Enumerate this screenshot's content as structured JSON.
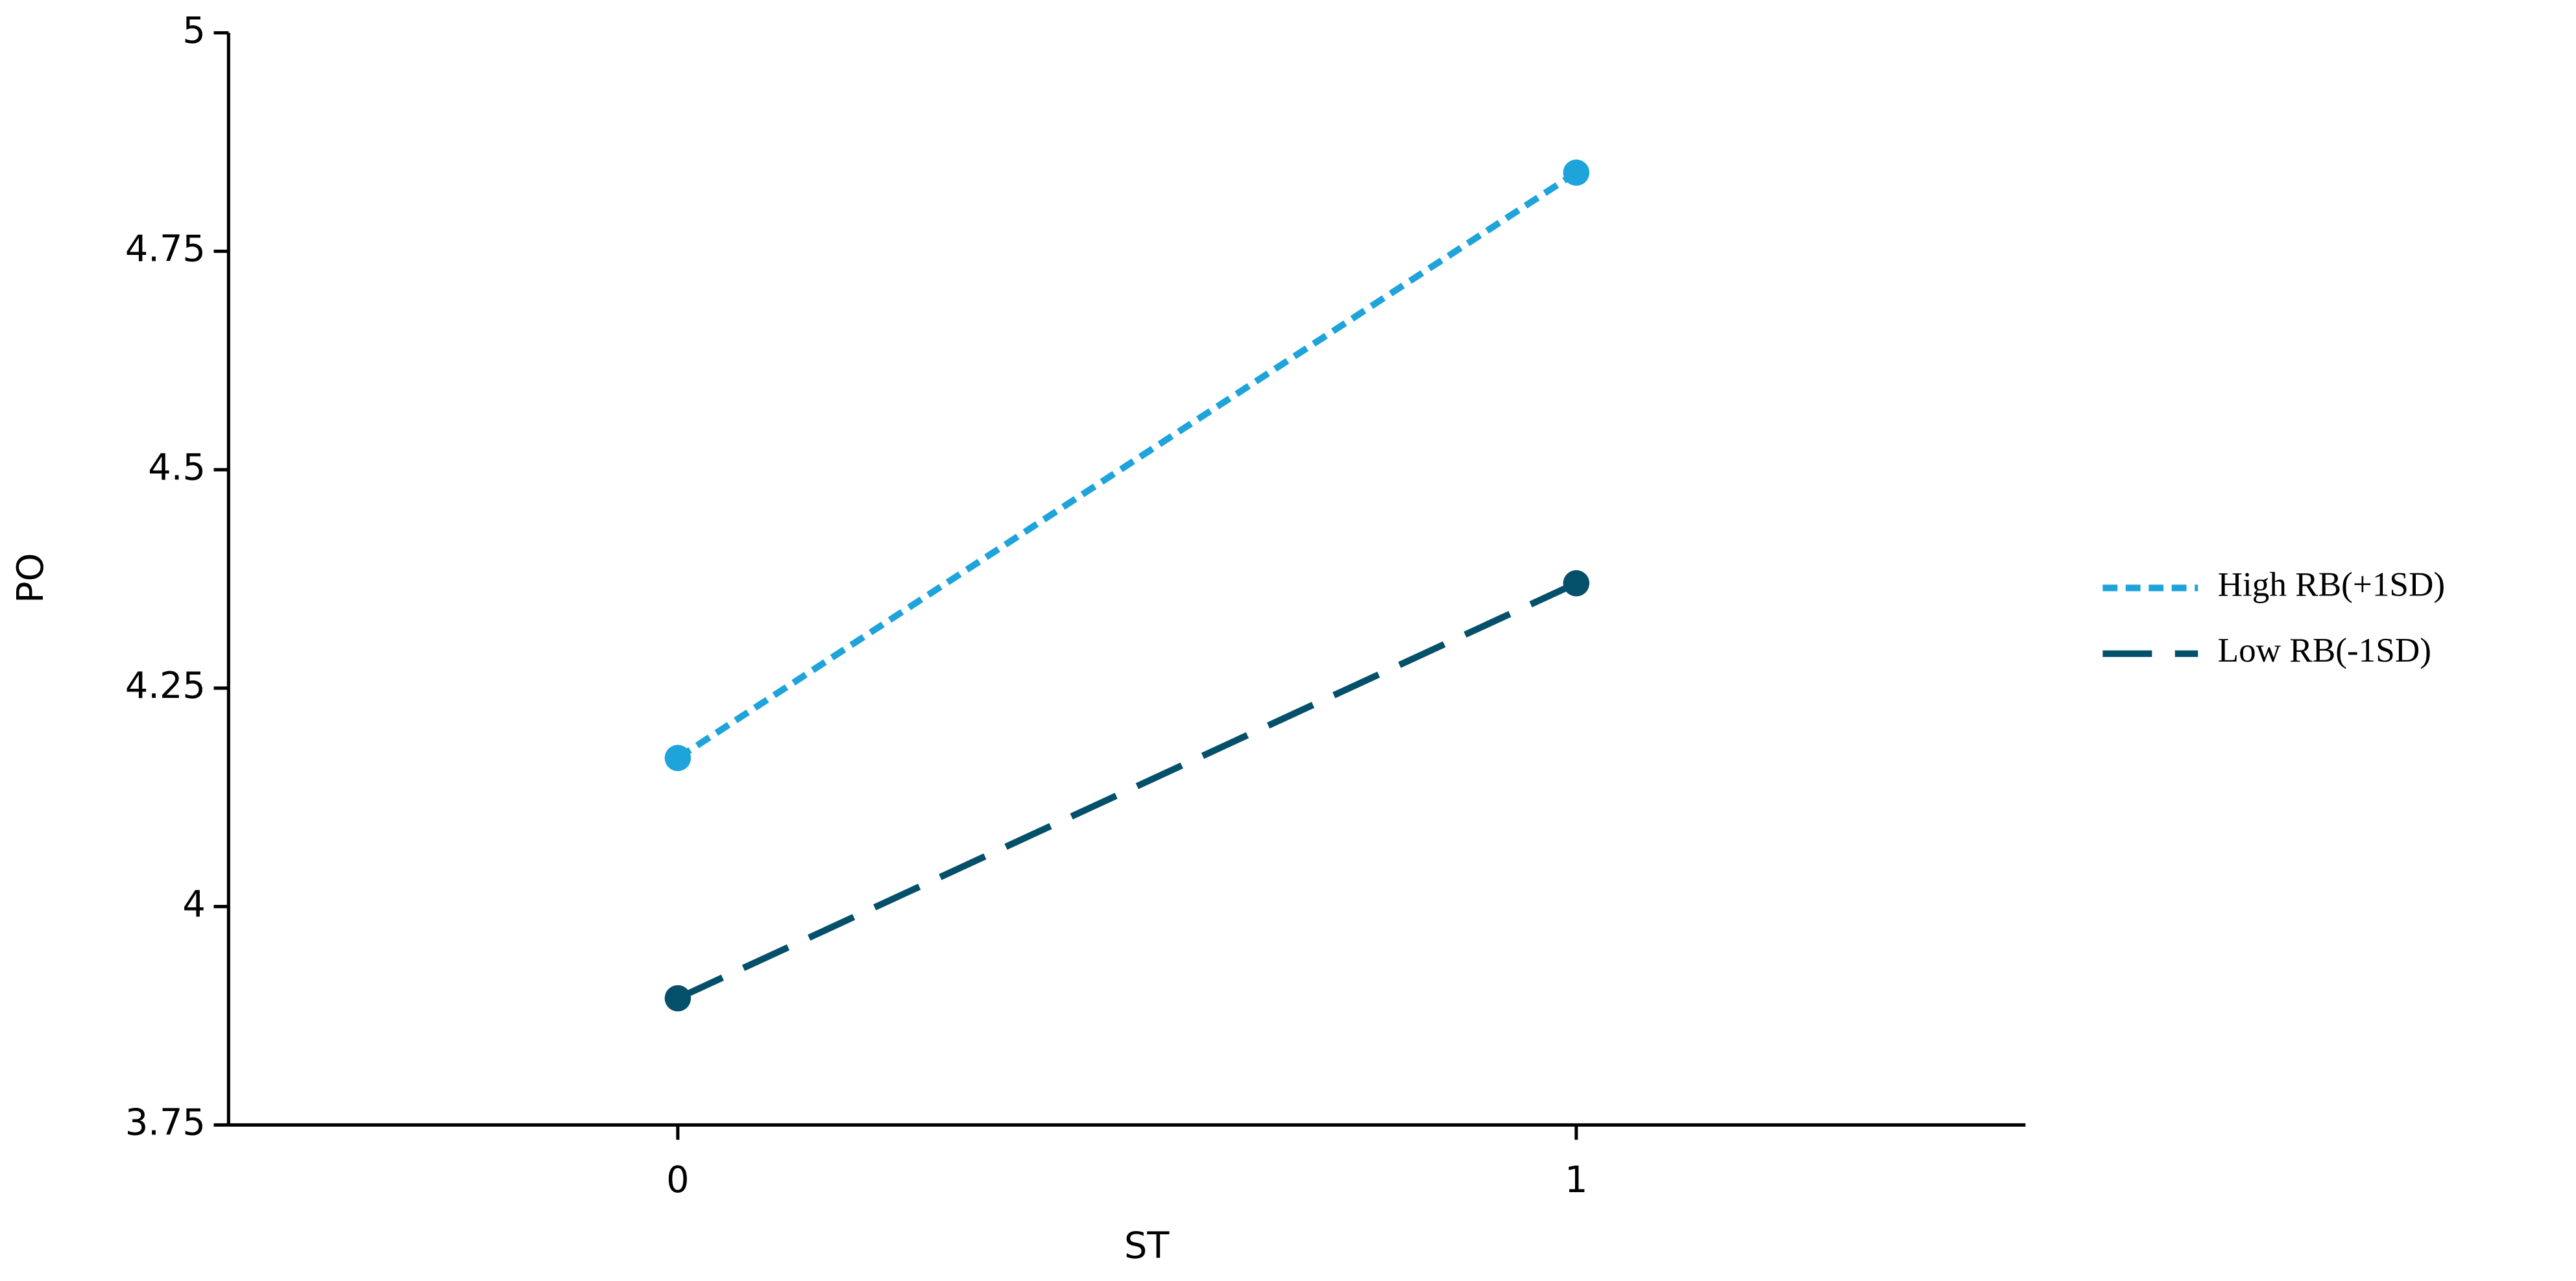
{
  "chart_data": {
    "type": "line",
    "xlabel": "ST",
    "ylabel": "PO",
    "x": [
      0,
      1
    ],
    "series": [
      {
        "name": "High RB(+1SD)",
        "color": "#1ea3db",
        "linestyle": "dotted",
        "values": [
          4.17,
          4.84
        ]
      },
      {
        "name": "Low RB(-1SD)",
        "color": "#04506a",
        "linestyle": "dashed",
        "values": [
          3.895,
          4.37
        ]
      }
    ],
    "xlim": [
      -0.5,
      1.5
    ],
    "xticks": [
      0,
      1
    ],
    "ylim": [
      3.75,
      5
    ],
    "yticks": [
      3.75,
      4,
      4.25,
      4.5,
      4.75,
      5
    ],
    "grid": false,
    "legend": "right"
  }
}
